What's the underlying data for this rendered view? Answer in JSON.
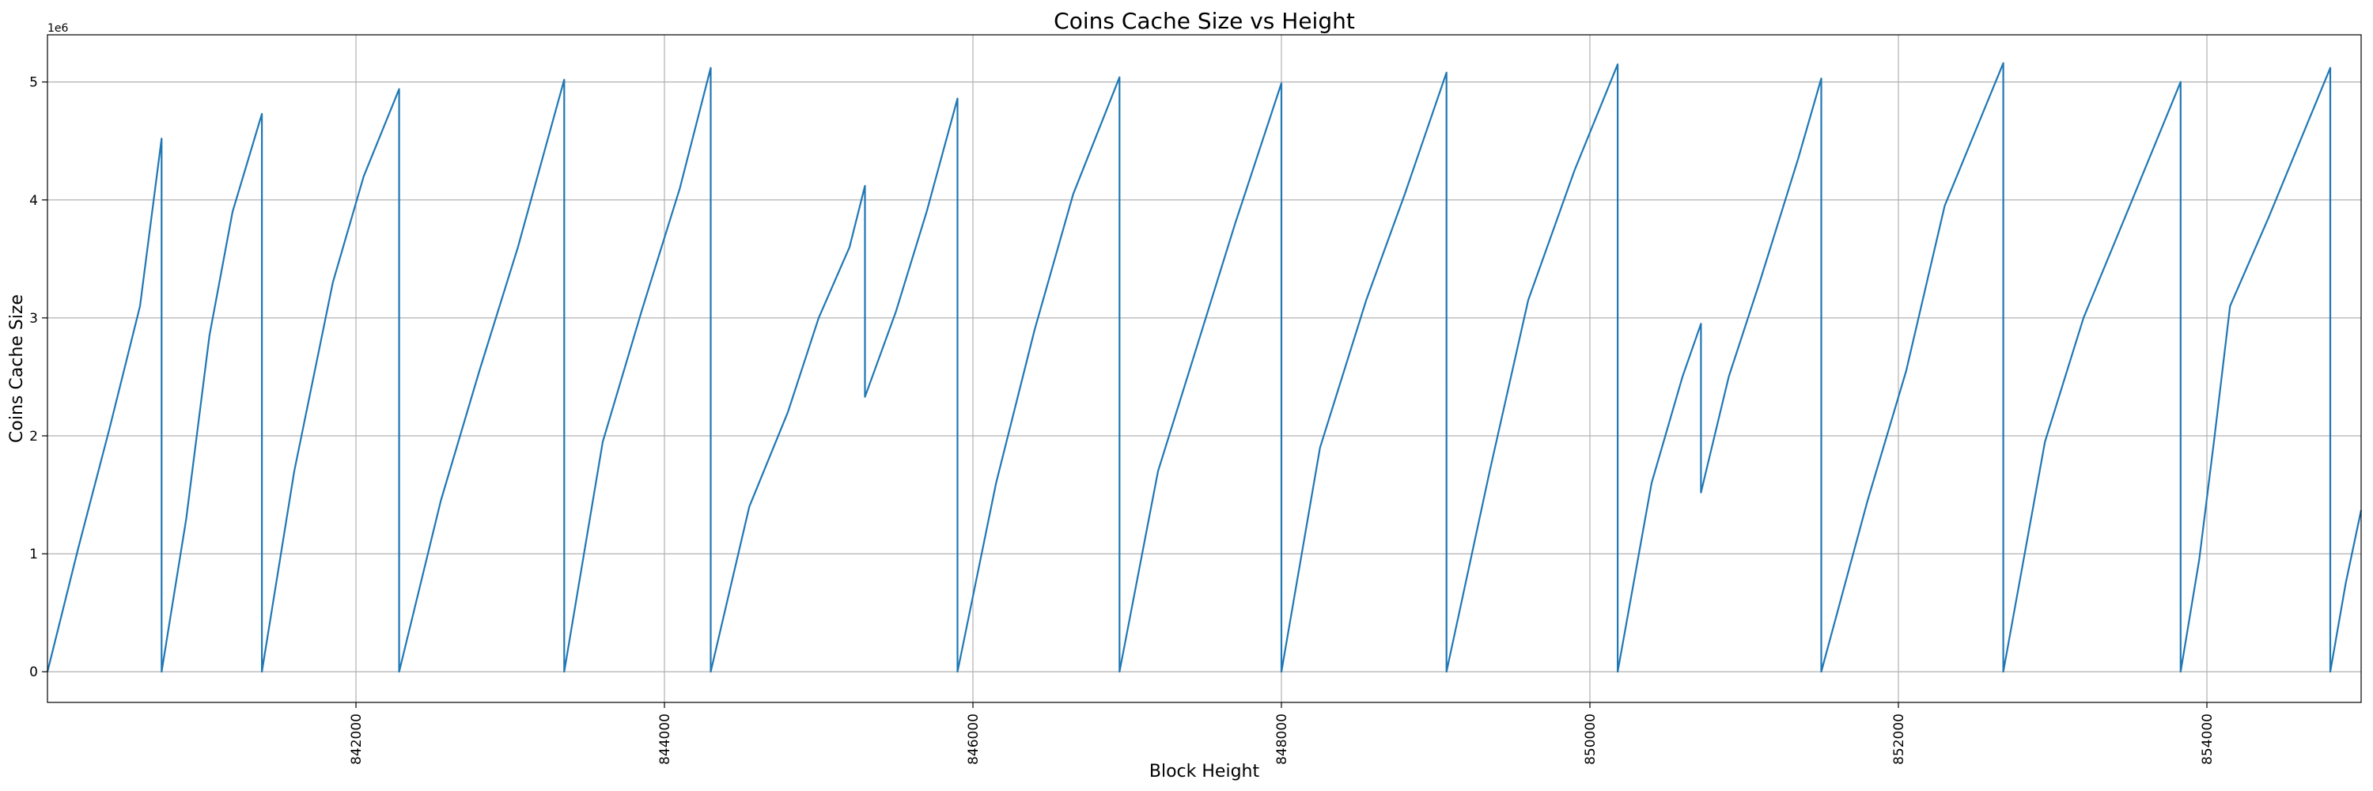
{
  "chart_data": {
    "type": "line",
    "title": "Coins Cache Size vs Height",
    "xlabel": "Block Height",
    "ylabel": "Coins Cache Size",
    "y_offset_text": "1e6",
    "xlim": [
      840000,
      855000
    ],
    "ylim": [
      -0.26,
      5.4
    ],
    "y_scale_exponent": 6,
    "xticks": [
      842000,
      844000,
      846000,
      848000,
      850000,
      852000,
      854000
    ],
    "xtick_labels": [
      "842000",
      "844000",
      "846000",
      "848000",
      "850000",
      "852000",
      "854000"
    ],
    "yticks": [
      0,
      1,
      2,
      3,
      4,
      5
    ],
    "ytick_labels": [
      "0",
      "1",
      "2",
      "3",
      "4",
      "5"
    ],
    "grid": true,
    "line_color": "#1f77b4",
    "series": [
      {
        "points": [
          [
            840000,
            0.0
          ],
          [
            840200,
            1.05
          ],
          [
            840400,
            2.05
          ],
          [
            840600,
            3.1
          ],
          [
            840740,
            4.52
          ],
          [
            840740,
            0.0
          ],
          [
            840900,
            1.3
          ],
          [
            841050,
            2.85
          ],
          [
            841200,
            3.9
          ],
          [
            841390,
            4.73
          ],
          [
            841390,
            0.0
          ],
          [
            841600,
            1.7
          ],
          [
            841850,
            3.3
          ],
          [
            842050,
            4.2
          ],
          [
            842280,
            4.94
          ],
          [
            842280,
            0.0
          ],
          [
            842550,
            1.45
          ],
          [
            842800,
            2.55
          ],
          [
            843050,
            3.6
          ],
          [
            843350,
            5.02
          ],
          [
            843350,
            0.0
          ],
          [
            843600,
            1.95
          ],
          [
            843850,
            3.05
          ],
          [
            844100,
            4.1
          ],
          [
            844300,
            5.12
          ],
          [
            844300,
            0.0
          ],
          [
            844550,
            1.4
          ],
          [
            844800,
            2.2
          ],
          [
            845000,
            3.0
          ],
          [
            845200,
            3.6
          ],
          [
            845300,
            4.12
          ],
          [
            845300,
            2.33
          ],
          [
            845500,
            3.05
          ],
          [
            845700,
            3.9
          ],
          [
            845900,
            4.86
          ],
          [
            845900,
            0.0
          ],
          [
            846150,
            1.6
          ],
          [
            846400,
            2.9
          ],
          [
            846650,
            4.05
          ],
          [
            846950,
            5.04
          ],
          [
            846950,
            0.0
          ],
          [
            847200,
            1.7
          ],
          [
            847450,
            2.75
          ],
          [
            847700,
            3.8
          ],
          [
            848000,
            4.99
          ],
          [
            848000,
            0.0
          ],
          [
            848250,
            1.9
          ],
          [
            848550,
            3.15
          ],
          [
            848800,
            4.05
          ],
          [
            849070,
            5.08
          ],
          [
            849070,
            0.0
          ],
          [
            849350,
            1.7
          ],
          [
            849600,
            3.15
          ],
          [
            849900,
            4.25
          ],
          [
            850180,
            5.15
          ],
          [
            850180,
            0.0
          ],
          [
            850400,
            1.6
          ],
          [
            850600,
            2.5
          ],
          [
            850720,
            2.95
          ],
          [
            850720,
            1.52
          ],
          [
            850900,
            2.5
          ],
          [
            851100,
            3.3
          ],
          [
            851350,
            4.35
          ],
          [
            851500,
            5.03
          ],
          [
            851500,
            0.0
          ],
          [
            851800,
            1.45
          ],
          [
            852050,
            2.55
          ],
          [
            852300,
            3.95
          ],
          [
            852680,
            5.16
          ],
          [
            852680,
            0.0
          ],
          [
            852950,
            1.95
          ],
          [
            853200,
            3.0
          ],
          [
            853500,
            3.95
          ],
          [
            853830,
            5.0
          ],
          [
            853830,
            0.0
          ],
          [
            853950,
            0.95
          ],
          [
            854050,
            2.0
          ],
          [
            854150,
            3.1
          ],
          [
            854400,
            3.85
          ],
          [
            854800,
            5.12
          ],
          [
            854800,
            0.0
          ],
          [
            854900,
            0.75
          ],
          [
            855000,
            1.37
          ]
        ]
      }
    ]
  }
}
